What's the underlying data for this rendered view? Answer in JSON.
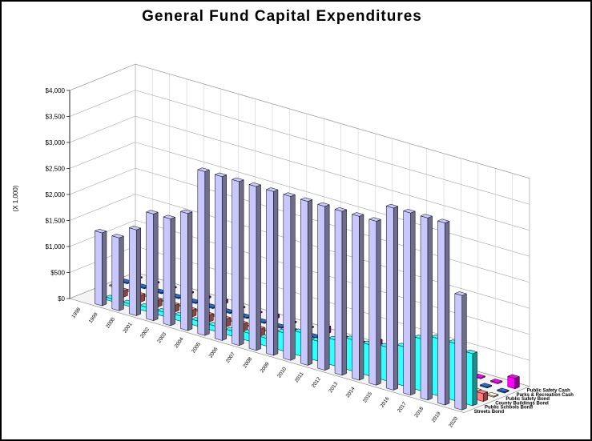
{
  "chart_data": {
    "type": "bar",
    "title": "General Fund Capital Expenditures",
    "ylabel": "(X 1,000)",
    "ylim": [
      0,
      4000
    ],
    "yticks": [
      "$0",
      "$500",
      "$1,000",
      "$1,500",
      "$2,000",
      "$2,500",
      "$3,000",
      "$3,500",
      "$4,000"
    ],
    "categories": [
      "1998",
      "1999",
      "2000",
      "2001",
      "2002",
      "2003",
      "2004",
      "2005",
      "2006",
      "2007",
      "2008",
      "2009",
      "2010",
      "2011",
      "2012",
      "2013",
      "2014",
      "2015",
      "2016",
      "2017",
      "2018",
      "2019",
      "2020"
    ],
    "series": [
      {
        "name": "Streets Bond",
        "color": "#c8c8ff",
        "values": [
          0,
          1400,
          1400,
          1650,
          2050,
          2050,
          2250,
          3150,
          3150,
          3150,
          3150,
          3150,
          3150,
          3150,
          3150,
          3150,
          3150,
          3150,
          3500,
          3500,
          3500,
          3500,
          2200
        ]
      },
      {
        "name": "Public Schools Bond",
        "color": "#33ffff",
        "values": [
          0,
          50,
          50,
          80,
          80,
          100,
          100,
          100,
          100,
          150,
          150,
          350,
          450,
          380,
          500,
          600,
          600,
          650,
          750,
          1000,
          1100,
          1100,
          1000
        ]
      },
      {
        "name": "County Buildings Bond",
        "color": "#ff8080",
        "values": [
          0,
          120,
          130,
          130,
          130,
          130,
          130,
          150,
          150,
          150,
          150,
          150,
          150,
          150,
          150,
          150,
          150,
          150,
          150,
          150,
          150,
          150,
          150
        ]
      },
      {
        "name": "Public Safety Bond",
        "color": "#fff0d0",
        "values": [
          20,
          20,
          20,
          20,
          20,
          20,
          20,
          20,
          20,
          20,
          20,
          20,
          20,
          20,
          20,
          20,
          20,
          20,
          20,
          20,
          20,
          20,
          20
        ]
      },
      {
        "name": "Parks & Recreation Cash",
        "color": "#2a6fd0",
        "values": [
          20,
          20,
          20,
          20,
          20,
          20,
          20,
          20,
          20,
          20,
          20,
          20,
          20,
          20,
          20,
          20,
          20,
          20,
          20,
          20,
          20,
          20,
          20
        ]
      },
      {
        "name": "Public Safety Cash",
        "color": "#ff00ff",
        "values": [
          20,
          20,
          20,
          20,
          30,
          60,
          20,
          20,
          60,
          20,
          20,
          120,
          20,
          20,
          150,
          20,
          20,
          20,
          160,
          20,
          20,
          20,
          200
        ]
      }
    ],
    "legend": "right"
  }
}
